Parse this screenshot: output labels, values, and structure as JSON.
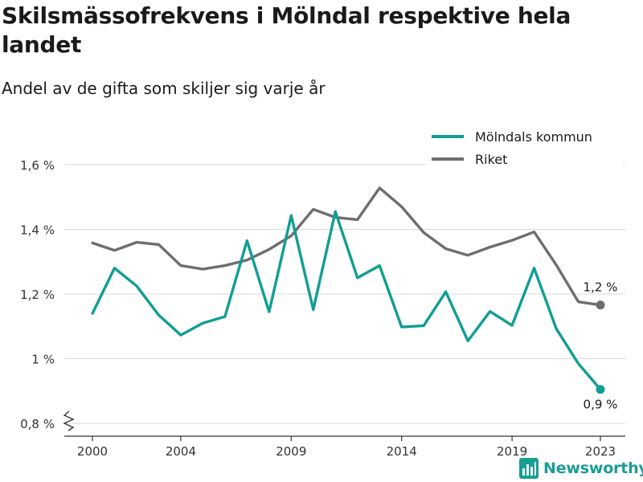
{
  "title": "Skilsmässofrekvens i Mölndal respektive hela landet",
  "subtitle": "Andel av de gifta som skiljer sig varje år",
  "brand": "Newsworthy",
  "colors": {
    "molndal": "#119e93",
    "riket": "#6e6d72",
    "grid": "#d9d9d9",
    "brand": "#1a9e93"
  },
  "chart_data": {
    "type": "line",
    "x": [
      2000,
      2001,
      2002,
      2003,
      2004,
      2005,
      2006,
      2007,
      2008,
      2009,
      2010,
      2011,
      2012,
      2013,
      2014,
      2015,
      2016,
      2017,
      2018,
      2019,
      2020,
      2021,
      2022,
      2023
    ],
    "series": [
      {
        "name": "Mölndals kommun",
        "color": "#119e93",
        "values": [
          1.14,
          1.28,
          1.225,
          1.135,
          1.073,
          1.11,
          1.13,
          1.365,
          1.145,
          1.443,
          1.152,
          1.455,
          1.25,
          1.288,
          1.098,
          1.102,
          1.207,
          1.055,
          1.146,
          1.103,
          1.28,
          1.093,
          0.985,
          0.905
        ],
        "end_label": "0,9 %"
      },
      {
        "name": "Riket",
        "color": "#6e6d72",
        "values": [
          1.358,
          1.335,
          1.36,
          1.353,
          1.288,
          1.277,
          1.288,
          1.305,
          1.338,
          1.38,
          1.462,
          1.437,
          1.43,
          1.528,
          1.47,
          1.39,
          1.34,
          1.32,
          1.345,
          1.366,
          1.392,
          1.29,
          1.176,
          1.166
        ],
        "end_label": "1,2 %"
      }
    ],
    "y_ticks": [
      {
        "value": 0.8,
        "label": "0,8 %"
      },
      {
        "value": 1.0,
        "label": "1 %"
      },
      {
        "value": 1.2,
        "label": "1,2 %"
      },
      {
        "value": 1.4,
        "label": "1,4 %"
      },
      {
        "value": 1.6,
        "label": "1,6 %"
      }
    ],
    "x_ticks": [
      2000,
      2004,
      2009,
      2014,
      2019,
      2023
    ],
    "ylim": [
      0.8,
      1.6
    ],
    "xlim": [
      2000,
      2023
    ],
    "grid": "horizontal",
    "legend_position": "top-right",
    "y_axis_break": true
  }
}
